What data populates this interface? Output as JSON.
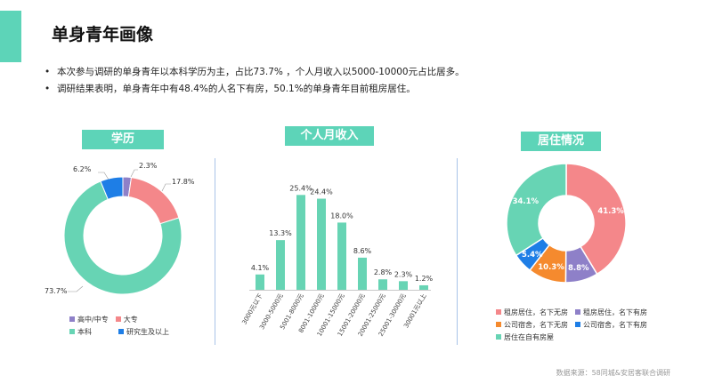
{
  "page": {
    "title": "单身青年画像",
    "bullets": [
      "本次参与调研的单身青年以本科学历为主，占比73.7% ，个人月收入以5000-10000元占比居多。",
      "调研结果表明，单身青年中有48.4%的人名下有房，50.1%的单身青年目前租房居住。"
    ],
    "footer": "数据来源：58同城&安居客联合调研",
    "accent_color": "#5dd4b8"
  },
  "chart_data": [
    {
      "type": "pie",
      "title": "学历",
      "categories": [
        "高中/中专",
        "大专",
        "本科",
        "研究生及以上"
      ],
      "values": [
        2.3,
        17.8,
        73.7,
        6.2
      ],
      "labels": [
        "2.3%",
        "17.8%",
        "73.7%",
        "6.2%"
      ],
      "colors": [
        "#8e80c8",
        "#f4878a",
        "#67d4b4",
        "#1e7ee6"
      ],
      "legend_position": "bottom"
    },
    {
      "type": "bar",
      "title": "个人月收入",
      "categories": [
        "3000元以下",
        "3000-5000元",
        "5001-8000元",
        "8001-10000元",
        "10001-15000元",
        "15001-20000元",
        "20001-25000元",
        "25001-30000元",
        "30001元以上"
      ],
      "values": [
        4.1,
        13.3,
        25.4,
        24.4,
        18.0,
        8.6,
        2.8,
        2.3,
        1.2
      ],
      "labels": [
        "4.1%",
        "13.3%",
        "25.4%",
        "24.4%",
        "18.0%",
        "8.6%",
        "2.8%",
        "2.3%",
        "1.2%"
      ],
      "ylim": [
        0,
        30
      ],
      "grid": false,
      "color": "#67d4b4"
    },
    {
      "type": "pie",
      "title": "居住情况",
      "categories": [
        "租房居住，名下无房",
        "租房居住，名下有房",
        "公司宿舍，名下无房",
        "公司宿舍，名下有房",
        "居住在自有房屋"
      ],
      "values": [
        41.3,
        8.8,
        10.3,
        5.4,
        34.1
      ],
      "labels": [
        "41.3%",
        "8.8%",
        "10.3%",
        "5.4%",
        "34.1%"
      ],
      "colors": [
        "#f4878a",
        "#8e80c8",
        "#f58a2e",
        "#1e7ee6",
        "#67d4b4"
      ],
      "legend_position": "bottom"
    }
  ]
}
